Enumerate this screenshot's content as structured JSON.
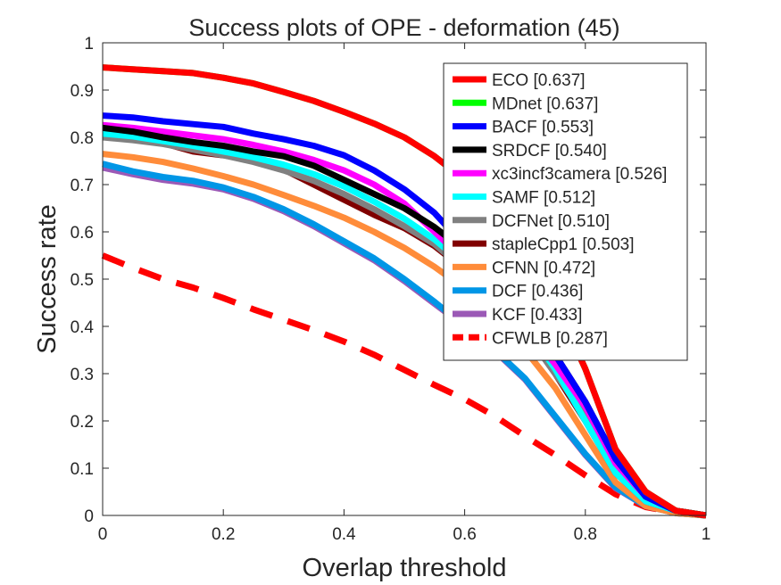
{
  "chart_data": {
    "type": "line",
    "title": "Success plots of OPE - deformation (45)",
    "xlabel": "Overlap threshold",
    "ylabel": "Success rate",
    "xlim": [
      0,
      1
    ],
    "ylim": [
      0,
      1
    ],
    "xticks": [
      "0",
      "0.2",
      "0.4",
      "0.6",
      "0.8",
      "1"
    ],
    "yticks": [
      "0",
      "0.1",
      "0.2",
      "0.3",
      "0.4",
      "0.5",
      "0.6",
      "0.7",
      "0.8",
      "0.9",
      "1"
    ],
    "grid": false,
    "legend_position": "top-right",
    "x": [
      0,
      0.05,
      0.1,
      0.15,
      0.2,
      0.25,
      0.3,
      0.35,
      0.4,
      0.45,
      0.5,
      0.55,
      0.6,
      0.65,
      0.7,
      0.75,
      0.8,
      0.85,
      0.9,
      0.95,
      1.0
    ],
    "series": [
      {
        "name": "ECO [0.637]",
        "color": "#ff0000",
        "dashed": false,
        "values": [
          0.948,
          0.944,
          0.94,
          0.936,
          0.926,
          0.914,
          0.896,
          0.877,
          0.854,
          0.829,
          0.8,
          0.76,
          0.71,
          0.64,
          0.55,
          0.45,
          0.31,
          0.14,
          0.05,
          0.01,
          0.0
        ]
      },
      {
        "name": "MDnet [0.637]",
        "color": "#00ff00",
        "dashed": false,
        "values": [
          0.948,
          0.944,
          0.94,
          0.936,
          0.926,
          0.914,
          0.896,
          0.877,
          0.854,
          0.829,
          0.8,
          0.76,
          0.71,
          0.64,
          0.55,
          0.45,
          0.31,
          0.14,
          0.05,
          0.01,
          0.0
        ]
      },
      {
        "name": "BACF [0.553]",
        "color": "#0000ff",
        "dashed": false,
        "values": [
          0.846,
          0.842,
          0.834,
          0.828,
          0.822,
          0.808,
          0.796,
          0.782,
          0.762,
          0.73,
          0.69,
          0.64,
          0.57,
          0.49,
          0.42,
          0.34,
          0.24,
          0.12,
          0.04,
          0.01,
          0.0
        ]
      },
      {
        "name": "SRDCF [0.540]",
        "color": "#000000",
        "dashed": false,
        "values": [
          0.82,
          0.812,
          0.8,
          0.79,
          0.782,
          0.77,
          0.76,
          0.74,
          0.71,
          0.68,
          0.65,
          0.61,
          0.56,
          0.5,
          0.43,
          0.34,
          0.24,
          0.12,
          0.04,
          0.01,
          0.0
        ]
      },
      {
        "name": "xc3incf3camera [0.526]",
        "color": "#ff00ff",
        "dashed": false,
        "values": [
          0.826,
          0.82,
          0.812,
          0.804,
          0.796,
          0.784,
          0.77,
          0.752,
          0.73,
          0.7,
          0.66,
          0.6,
          0.54,
          0.47,
          0.4,
          0.32,
          0.23,
          0.11,
          0.04,
          0.01,
          0.0
        ]
      },
      {
        "name": "SAMF [0.512]",
        "color": "#00ffff",
        "dashed": false,
        "values": [
          0.808,
          0.802,
          0.792,
          0.782,
          0.77,
          0.758,
          0.742,
          0.722,
          0.696,
          0.664,
          0.628,
          0.584,
          0.53,
          0.47,
          0.4,
          0.31,
          0.2,
          0.09,
          0.03,
          0.01,
          0.0
        ]
      },
      {
        "name": "DCFNet [0.510]",
        "color": "#808080",
        "dashed": false,
        "values": [
          0.8,
          0.794,
          0.786,
          0.774,
          0.762,
          0.748,
          0.73,
          0.708,
          0.68,
          0.648,
          0.612,
          0.574,
          0.52,
          0.46,
          0.39,
          0.3,
          0.21,
          0.1,
          0.04,
          0.01,
          0.0
        ]
      },
      {
        "name": "stapleCpp1 [0.503]",
        "color": "#800000",
        "dashed": false,
        "values": [
          0.804,
          0.798,
          0.788,
          0.77,
          0.762,
          0.752,
          0.732,
          0.7,
          0.668,
          0.636,
          0.608,
          0.57,
          0.52,
          0.46,
          0.39,
          0.3,
          0.2,
          0.09,
          0.03,
          0.01,
          0.0
        ]
      },
      {
        "name": "CFNN [0.472]",
        "color": "#ff8c3a",
        "dashed": false,
        "values": [
          0.765,
          0.758,
          0.748,
          0.734,
          0.718,
          0.7,
          0.678,
          0.655,
          0.63,
          0.6,
          0.566,
          0.526,
          0.48,
          0.42,
          0.35,
          0.27,
          0.17,
          0.07,
          0.02,
          0.005,
          0.0
        ]
      },
      {
        "name": "DCF [0.436]",
        "color": "#0096e6",
        "dashed": false,
        "values": [
          0.744,
          0.728,
          0.716,
          0.708,
          0.694,
          0.674,
          0.648,
          0.616,
          0.58,
          0.544,
          0.5,
          0.452,
          0.4,
          0.35,
          0.29,
          0.21,
          0.13,
          0.06,
          0.02,
          0.005,
          0.0
        ]
      },
      {
        "name": "KCF [0.433]",
        "color": "#9b59b6",
        "dashed": false,
        "values": [
          0.736,
          0.722,
          0.71,
          0.702,
          0.69,
          0.67,
          0.644,
          0.612,
          0.576,
          0.54,
          0.496,
          0.448,
          0.4,
          0.348,
          0.288,
          0.208,
          0.128,
          0.058,
          0.02,
          0.005,
          0.0
        ]
      },
      {
        "name": "CFWLB [0.287]",
        "color": "#ff0000",
        "dashed": true,
        "values": [
          0.55,
          0.524,
          0.5,
          0.482,
          0.46,
          0.436,
          0.414,
          0.392,
          0.368,
          0.34,
          0.308,
          0.276,
          0.246,
          0.21,
          0.168,
          0.128,
          0.085,
          0.045,
          0.018,
          0.006,
          0.0
        ]
      }
    ]
  }
}
